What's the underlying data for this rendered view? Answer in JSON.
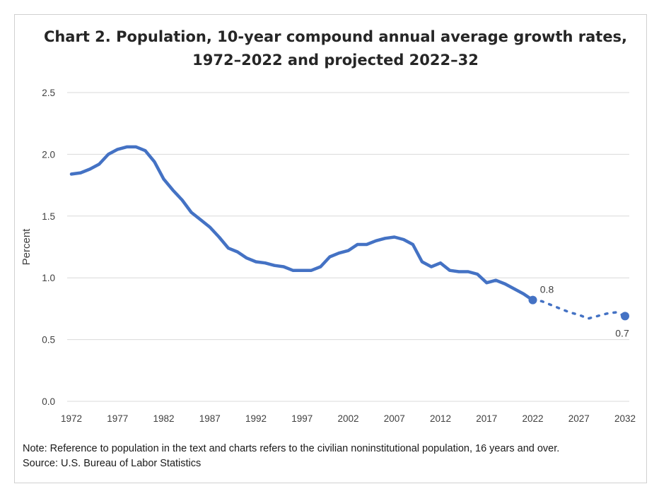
{
  "chart_data": {
    "type": "line",
    "title_line1": "Chart 2. Population, 10-year compound annual average growth rates,",
    "title_line2": "1972–2022 and projected 2022–32",
    "xlabel": "",
    "ylabel": "Percent",
    "ylim": [
      0,
      2.5
    ],
    "yticks": [
      "0.0",
      "0.5",
      "1.0",
      "1.5",
      "2.0",
      "2.5"
    ],
    "xlim": [
      1972,
      2032
    ],
    "xticks": [
      "1972",
      "1977",
      "1982",
      "1987",
      "1992",
      "1997",
      "2002",
      "2007",
      "2012",
      "2017",
      "2022",
      "2027",
      "2032"
    ],
    "grid": "horizontal",
    "line_color": "#4472C4",
    "series": [
      {
        "style": "solid",
        "x": [
          1972,
          1973,
          1974,
          1975,
          1976,
          1977,
          1978,
          1979,
          1980,
          1981,
          1982,
          1983,
          1984,
          1985,
          1986,
          1987,
          1988,
          1989,
          1990,
          1991,
          1992,
          1993,
          1994,
          1995,
          1996,
          1997,
          1998,
          1999,
          2000,
          2001,
          2002,
          2003,
          2004,
          2005,
          2006,
          2007,
          2008,
          2009,
          2010,
          2011,
          2012,
          2013,
          2014,
          2015,
          2016,
          2017,
          2018,
          2019,
          2020,
          2021,
          2022
        ],
        "y": [
          1.84,
          1.85,
          1.88,
          1.92,
          2.0,
          2.04,
          2.06,
          2.06,
          2.03,
          1.94,
          1.8,
          1.71,
          1.63,
          1.53,
          1.47,
          1.41,
          1.33,
          1.24,
          1.21,
          1.16,
          1.13,
          1.12,
          1.1,
          1.09,
          1.06,
          1.06,
          1.06,
          1.09,
          1.17,
          1.2,
          1.22,
          1.27,
          1.27,
          1.3,
          1.32,
          1.33,
          1.31,
          1.27,
          1.13,
          1.09,
          1.12,
          1.06,
          1.05,
          1.05,
          1.03,
          0.96,
          0.98,
          0.95,
          0.91,
          0.87,
          0.82
        ]
      },
      {
        "style": "dotted",
        "x": [
          2022,
          2023,
          2024,
          2025,
          2026,
          2027,
          2028,
          2029,
          2030,
          2031,
          2032
        ],
        "y": [
          0.82,
          0.81,
          0.78,
          0.75,
          0.72,
          0.7,
          0.67,
          0.69,
          0.71,
          0.72,
          0.69
        ]
      }
    ],
    "annotations": [
      {
        "x": 2022,
        "y": 0.82,
        "label": "0.8"
      },
      {
        "x": 2032,
        "y": 0.69,
        "label": "0.7"
      }
    ]
  },
  "note_line1": "Note: Reference to population in the text and charts refers to the civilian noninstitutional population, 16 years and over.",
  "note_line2": "Source: U.S. Bureau of Labor Statistics"
}
